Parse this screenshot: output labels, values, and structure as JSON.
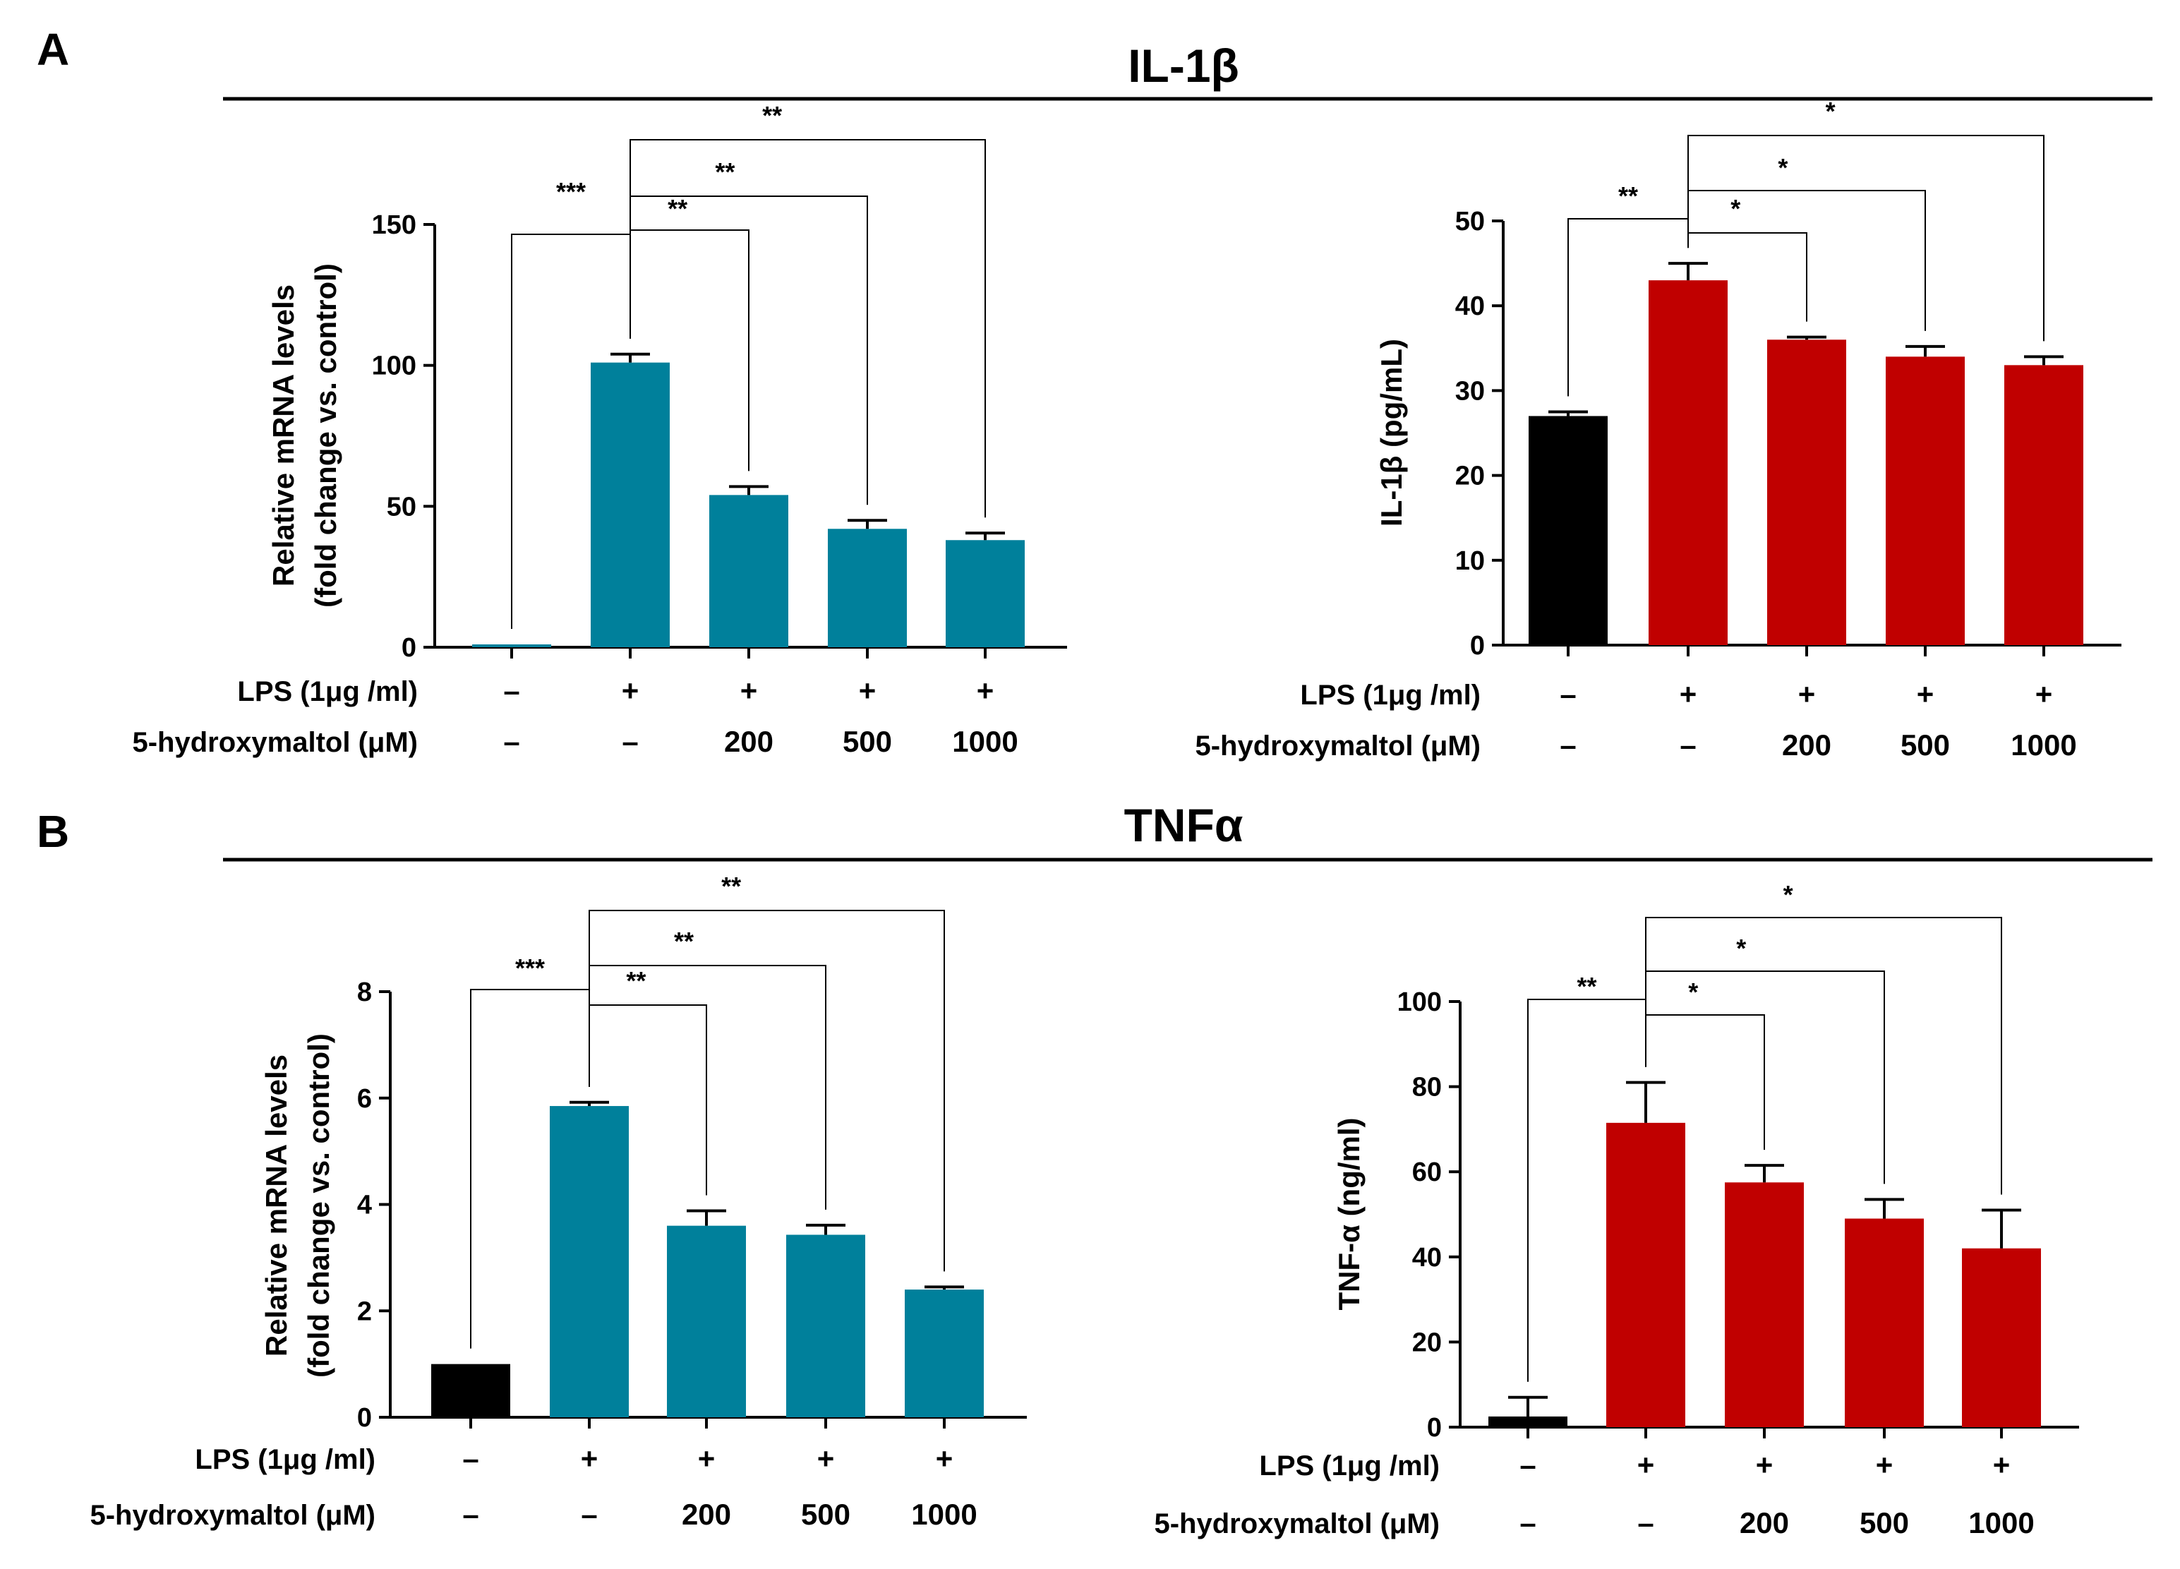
{
  "sections": [
    {
      "letter": "A",
      "title": "IL-1β"
    },
    {
      "letter": "B",
      "title": "TNFα"
    }
  ],
  "conditions": {
    "lps_label": "LPS (1μg /ml)",
    "drug_label": "5-hydroxymaltol (μM)",
    "lps_values": [
      "–",
      "+",
      "+",
      "+",
      "+"
    ],
    "drug_values": [
      "–",
      "–",
      "200",
      "500",
      "1000"
    ]
  },
  "colors": {
    "teal": "#00809b",
    "red": "#c00000",
    "black": "#000000"
  },
  "chart_data": [
    {
      "id": "il1b-mrna",
      "type": "bar",
      "section": "A",
      "ylabel_lines": [
        "Relative mRNA levels",
        "(fold change vs. control)"
      ],
      "ylim": [
        0,
        150
      ],
      "ticks": [
        "0",
        "50",
        "100",
        "150"
      ],
      "categories": [
        "Control",
        "LPS",
        "LPS + 200 μM",
        "LPS + 500 μM",
        "LPS + 1000 μM"
      ],
      "values": [
        1,
        101,
        54,
        42,
        38
      ],
      "errors": [
        0,
        3,
        3,
        3,
        2.5
      ],
      "bar_colors": [
        "teal",
        "teal",
        "teal",
        "teal",
        "teal"
      ],
      "significance": [
        {
          "from": 0,
          "to": 1,
          "label": "***"
        },
        {
          "from": 1,
          "to": 2,
          "label": "**"
        },
        {
          "from": 1,
          "to": 3,
          "label": "**"
        },
        {
          "from": 1,
          "to": 4,
          "label": "**"
        }
      ]
    },
    {
      "id": "il1b-protein",
      "type": "bar",
      "section": "A",
      "ylabel_lines": [
        "IL-1β (pg/mL)"
      ],
      "ylim": [
        0,
        50
      ],
      "ticks": [
        "0",
        "10",
        "20",
        "30",
        "40",
        "50"
      ],
      "categories": [
        "Control",
        "LPS",
        "LPS + 200 μM",
        "LPS + 500 μM",
        "LPS + 1000 μM"
      ],
      "values": [
        27,
        43,
        36,
        34,
        33
      ],
      "errors": [
        0.5,
        2,
        0.3,
        1.2,
        1
      ],
      "bar_colors": [
        "black",
        "red",
        "red",
        "red",
        "red"
      ],
      "significance": [
        {
          "from": 0,
          "to": 1,
          "label": "**"
        },
        {
          "from": 1,
          "to": 2,
          "label": "*"
        },
        {
          "from": 1,
          "to": 3,
          "label": "*"
        },
        {
          "from": 1,
          "to": 4,
          "label": "*"
        }
      ]
    },
    {
      "id": "tnfa-mrna",
      "type": "bar",
      "section": "B",
      "ylabel_lines": [
        "Relative mRNA levels",
        "(fold change vs. control)"
      ],
      "ylim": [
        0,
        8
      ],
      "ticks": [
        "0",
        "2",
        "4",
        "6",
        "8"
      ],
      "categories": [
        "Control",
        "LPS",
        "LPS + 200 μM",
        "LPS + 500 μM",
        "LPS + 1000 μM"
      ],
      "values": [
        1,
        5.85,
        3.6,
        3.43,
        2.4
      ],
      "errors": [
        0,
        0.07,
        0.28,
        0.18,
        0.05
      ],
      "bar_colors": [
        "black",
        "teal",
        "teal",
        "teal",
        "teal"
      ],
      "significance": [
        {
          "from": 0,
          "to": 1,
          "label": "***"
        },
        {
          "from": 1,
          "to": 2,
          "label": "**"
        },
        {
          "from": 1,
          "to": 3,
          "label": "**"
        },
        {
          "from": 1,
          "to": 4,
          "label": "**"
        }
      ]
    },
    {
      "id": "tnfa-protein",
      "type": "bar",
      "section": "B",
      "ylabel_lines": [
        "TNF-α (ng/ml)"
      ],
      "ylim": [
        0,
        100
      ],
      "ticks": [
        "0",
        "20",
        "40",
        "60",
        "80",
        "100"
      ],
      "categories": [
        "Control",
        "LPS",
        "LPS + 200 μM",
        "LPS + 500 μM",
        "LPS + 1000 μM"
      ],
      "values": [
        2.5,
        71.5,
        57.5,
        49,
        42
      ],
      "errors": [
        4.5,
        9.5,
        4,
        4.5,
        9
      ],
      "bar_colors": [
        "black",
        "red",
        "red",
        "red",
        "red"
      ],
      "significance": [
        {
          "from": 0,
          "to": 1,
          "label": "**"
        },
        {
          "from": 1,
          "to": 2,
          "label": "*"
        },
        {
          "from": 1,
          "to": 3,
          "label": "*"
        },
        {
          "from": 1,
          "to": 4,
          "label": "*"
        }
      ]
    }
  ]
}
